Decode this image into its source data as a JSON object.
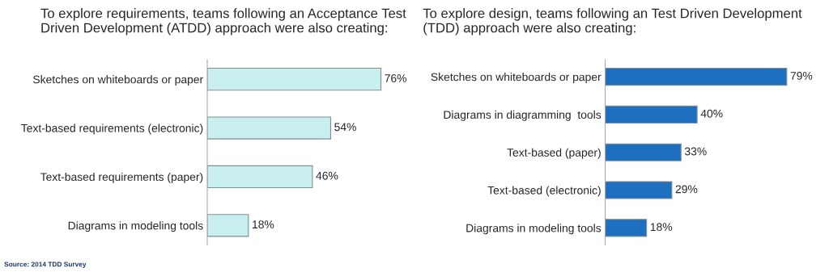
{
  "chart_data": [
    {
      "type": "bar",
      "orientation": "horizontal",
      "title": "To explore requirements, teams following an Acceptance Test Driven Development (ATDD) approach were also creating:",
      "categories": [
        "Sketches on whiteboards or paper",
        "Text-based requirements (electronic)",
        "Text-based requirements (paper)",
        "Diagrams in modeling tools"
      ],
      "values": [
        76,
        54,
        46,
        18
      ],
      "value_labels": [
        "76%",
        "54%",
        "46%",
        "18%"
      ],
      "color": "#c8eef0",
      "tick_labels": "y",
      "grid": false,
      "annotations": [
        "Source: 2014 TDD Survey"
      ]
    },
    {
      "type": "bar",
      "orientation": "horizontal",
      "title": "To explore design, teams following an Test Driven Development (TDD) approach were also creating:",
      "categories": [
        "Sketches on whiteboards or paper",
        "Diagrams in diagramming  tools",
        "Text-based (paper)",
        "Text-based (electronic)",
        "Diagrams in modeling tools"
      ],
      "values": [
        79,
        40,
        33,
        29,
        18
      ],
      "value_labels": [
        "79%",
        "40%",
        "33%",
        "29%",
        "18%"
      ],
      "color": "#1f6fc0",
      "tick_labels": "y",
      "grid": false
    }
  ]
}
